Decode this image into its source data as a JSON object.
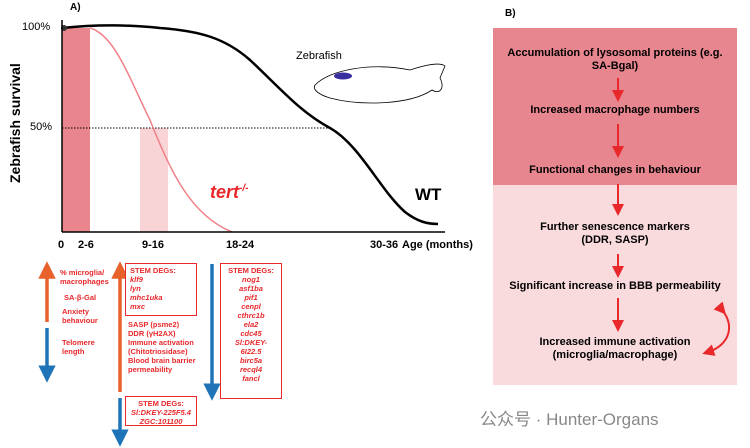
{
  "panel_a": {
    "label": "A)",
    "y_axis_label": "Zebrafish survival",
    "y_ticks": [
      "100%",
      "50%"
    ],
    "x_ticks": [
      "0",
      "2-6",
      "9-16",
      "18-24",
      "30-36"
    ],
    "x_axis_label": "Age (months)",
    "tert_label": "tert",
    "tert_superscript": "-/-",
    "wt_label": "WT",
    "zebrafish_label": "Zebrafish",
    "left_list": [
      "% microglia/ macrophages",
      "SA-β-Gal",
      "Anxiety behaviour",
      "Telomere length"
    ],
    "stem_box_1": {
      "title": "STEM DEGs:",
      "genes": [
        "klf9",
        "lyn",
        "mhc1uka",
        "mxc"
      ]
    },
    "middle_list": [
      "SASP (psme2)",
      "DDR (γH2AX)",
      "Immune activation (Chitotriosidase)",
      "Blood brain barrier permeability"
    ],
    "stem_box_2": {
      "title": "STEM DEGs:",
      "genes": [
        "Sl:DKEY-225F5.4",
        "ZGC:101100"
      ]
    },
    "stem_box_3": {
      "title": "STEM DEGs:",
      "genes": [
        "nog1",
        "asf1ba",
        "pif1",
        "cenpl",
        "cthrc1b",
        "ela2",
        "cdc45",
        "Sl:DKEY-6I22.5",
        "birc5a",
        "recql4",
        "fancl"
      ]
    }
  },
  "panel_b": {
    "label": "B)",
    "steps": [
      "Accumulation of lysosomal proteins (e.g. SA-Bgal)",
      "Increased macrophage numbers",
      "Functional changes in behaviour",
      "Further senescence markers (DDR, SASP)",
      "Significant increase in BBB permeability",
      "Increased immune activation (microglia/macrophage)"
    ]
  },
  "watermark": "公众号 · Hunter-Organs"
}
